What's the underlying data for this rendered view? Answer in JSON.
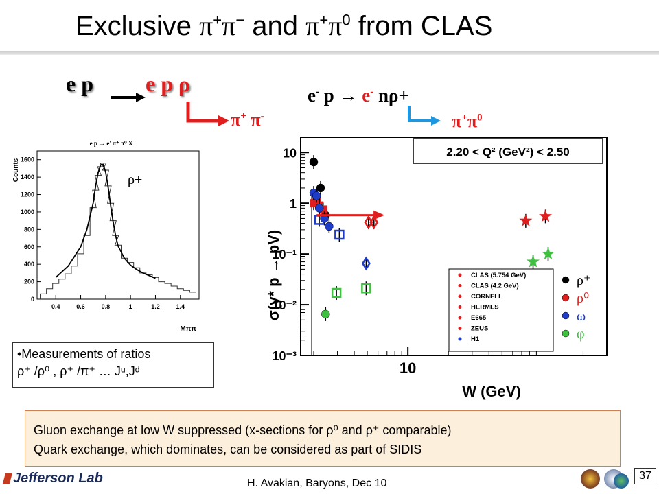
{
  "slide": {
    "title": {
      "pre": "Exclusive ",
      "m1": "π",
      "m1sup": "+",
      "m2": "π",
      "m2sup": "−",
      "mid": " and ",
      "m3": "π",
      "m3sup": "+",
      "m4": "π",
      "m4sup": "0",
      "post": " from CLAS"
    },
    "reaction1": {
      "lhs": "e p",
      "rhs": "e p ρ",
      "decay_pi1": "π",
      "decay_pi1_sup": "+",
      "decay_pi2": "π",
      "decay_pi2_sup": "-"
    },
    "reaction2": {
      "e": "e",
      "e_sup": "-",
      "p_arrow": " p → ",
      "e2": "e",
      "e2_sup": "-",
      "tail": " nρ+",
      "decay_pi1": "π",
      "decay_pi1_sup": "+",
      "decay_pi2": "π",
      "decay_pi2_sup": "0"
    },
    "ratio_box": {
      "bullet": "•Measurements of ratios",
      "line2": "ρ⁺ /ρ⁰ , ρ⁺ /π⁺ … Jᵘ,Jᵈ"
    },
    "conclusion": {
      "line1": "Gluon exchange at low W suppressed (x-sections for ρ⁰ and ρ⁺ comparable)",
      "line2": "Quark exchange, which dominates, can be considered as part of SIDIS"
    },
    "footer": "H. Avakian, Baryons, Dec 10",
    "page_number": "37",
    "lab_logo": "Jefferson Lab",
    "logos": [
      "ornate-seal-logo",
      "jsa-logo",
      "doe-logo"
    ],
    "colors": {
      "red": "#e01e1e",
      "box_fill": "#fcefdc",
      "box_border": "#d08050"
    }
  },
  "chart_data": [
    {
      "type": "line",
      "title": "e p → e' π⁺ π⁰ X",
      "xlabel": "Mππ",
      "ylabel": "Counts",
      "xlim": [
        0.25,
        1.55
      ],
      "ylim": [
        0,
        1700
      ],
      "xticks": [
        "0.4",
        "0.6",
        "0.8",
        "1",
        "1.2",
        "1.4"
      ],
      "yticks": [
        "0",
        "200",
        "400",
        "600",
        "800",
        "1000",
        "1200",
        "1400",
        "1600"
      ],
      "annotation": "ρ+",
      "series": [
        {
          "kind": "histogram",
          "x": [
            0.3,
            0.35,
            0.4,
            0.45,
            0.5,
            0.55,
            0.6,
            0.65,
            0.7,
            0.72,
            0.74,
            0.76,
            0.78,
            0.8,
            0.82,
            0.84,
            0.86,
            0.88,
            0.9,
            0.95,
            1.0,
            1.05,
            1.1,
            1.15,
            1.2,
            1.25,
            1.3,
            1.35,
            1.4,
            1.45,
            1.5
          ],
          "y": [
            60,
            120,
            180,
            230,
            290,
            380,
            520,
            730,
            1050,
            1250,
            1420,
            1520,
            1560,
            1480,
            1300,
            1100,
            900,
            730,
            620,
            470,
            420,
            360,
            300,
            280,
            250,
            200,
            180,
            150,
            120,
            100,
            80
          ]
        },
        {
          "kind": "fit",
          "x": [
            0.4,
            0.5,
            0.6,
            0.65,
            0.7,
            0.72,
            0.74,
            0.76,
            0.78,
            0.8,
            0.82,
            0.84,
            0.86,
            0.88,
            0.9,
            0.95,
            1.0,
            1.05,
            1.1,
            1.15,
            1.2
          ],
          "y": [
            250,
            380,
            600,
            800,
            1100,
            1300,
            1450,
            1540,
            1545,
            1460,
            1290,
            1080,
            890,
            730,
            610,
            470,
            390,
            340,
            300,
            270,
            240
          ]
        }
      ]
    },
    {
      "type": "scatter",
      "log_x": true,
      "log_y": true,
      "xlabel": "W (GeV)",
      "ylabel": "σ(γ* p → pV)",
      "xlim": [
        1.6,
        300
      ],
      "ylim": [
        0.001,
        20
      ],
      "xticks": [
        "10"
      ],
      "yticks": [
        "10",
        "1",
        "10⁻¹",
        "10⁻²",
        "10⁻³"
      ],
      "annotation": "2.20 < Q² (GeV²) < 2.50",
      "legend": {
        "placement": "bottom-right",
        "experiments": [
          "CLAS (5.754 GeV)",
          "CLAS (4.2 GeV)",
          "CORNELL",
          "HERMES",
          "E665",
          "ZEUS",
          "H1"
        ],
        "mesons": [
          "ρ⁺",
          "ρ⁰",
          "ω",
          "φ"
        ]
      },
      "series": [
        {
          "meson": "ρ+",
          "color": "#000000",
          "marker": "circle",
          "points": [
            [
              2.0,
              6.5
            ],
            [
              2.25,
              2.0
            ],
            [
              2.45,
              0.58
            ]
          ]
        },
        {
          "meson": "ρ0",
          "color": "#e01e1e",
          "marker": "mixed",
          "points": [
            [
              2.0,
              1.0
            ],
            [
              2.1,
              1.15
            ],
            [
              2.2,
              0.9
            ],
            [
              2.35,
              0.75
            ],
            [
              5.1,
              0.42
            ],
            [
              5.6,
              0.42
            ],
            [
              75,
              0.45
            ],
            [
              105,
              0.55
            ]
          ]
        },
        {
          "meson": "ω",
          "color": "#1e3cc8",
          "marker": "mixed",
          "points": [
            [
              2.0,
              1.6
            ],
            [
              2.1,
              1.4
            ],
            [
              2.2,
              0.8
            ],
            [
              2.4,
              0.5
            ],
            [
              2.6,
              0.35
            ],
            [
              3.1,
              0.24
            ],
            [
              2.2,
              0.47
            ],
            [
              4.9,
              0.065
            ]
          ]
        },
        {
          "meson": "φ",
          "color": "#40c040",
          "marker": "mixed",
          "points": [
            [
              2.45,
              0.0065
            ],
            [
              2.95,
              0.017
            ],
            [
              4.9,
              0.021
            ],
            [
              85,
              0.07
            ],
            [
              110,
              0.1
            ]
          ]
        }
      ]
    }
  ]
}
